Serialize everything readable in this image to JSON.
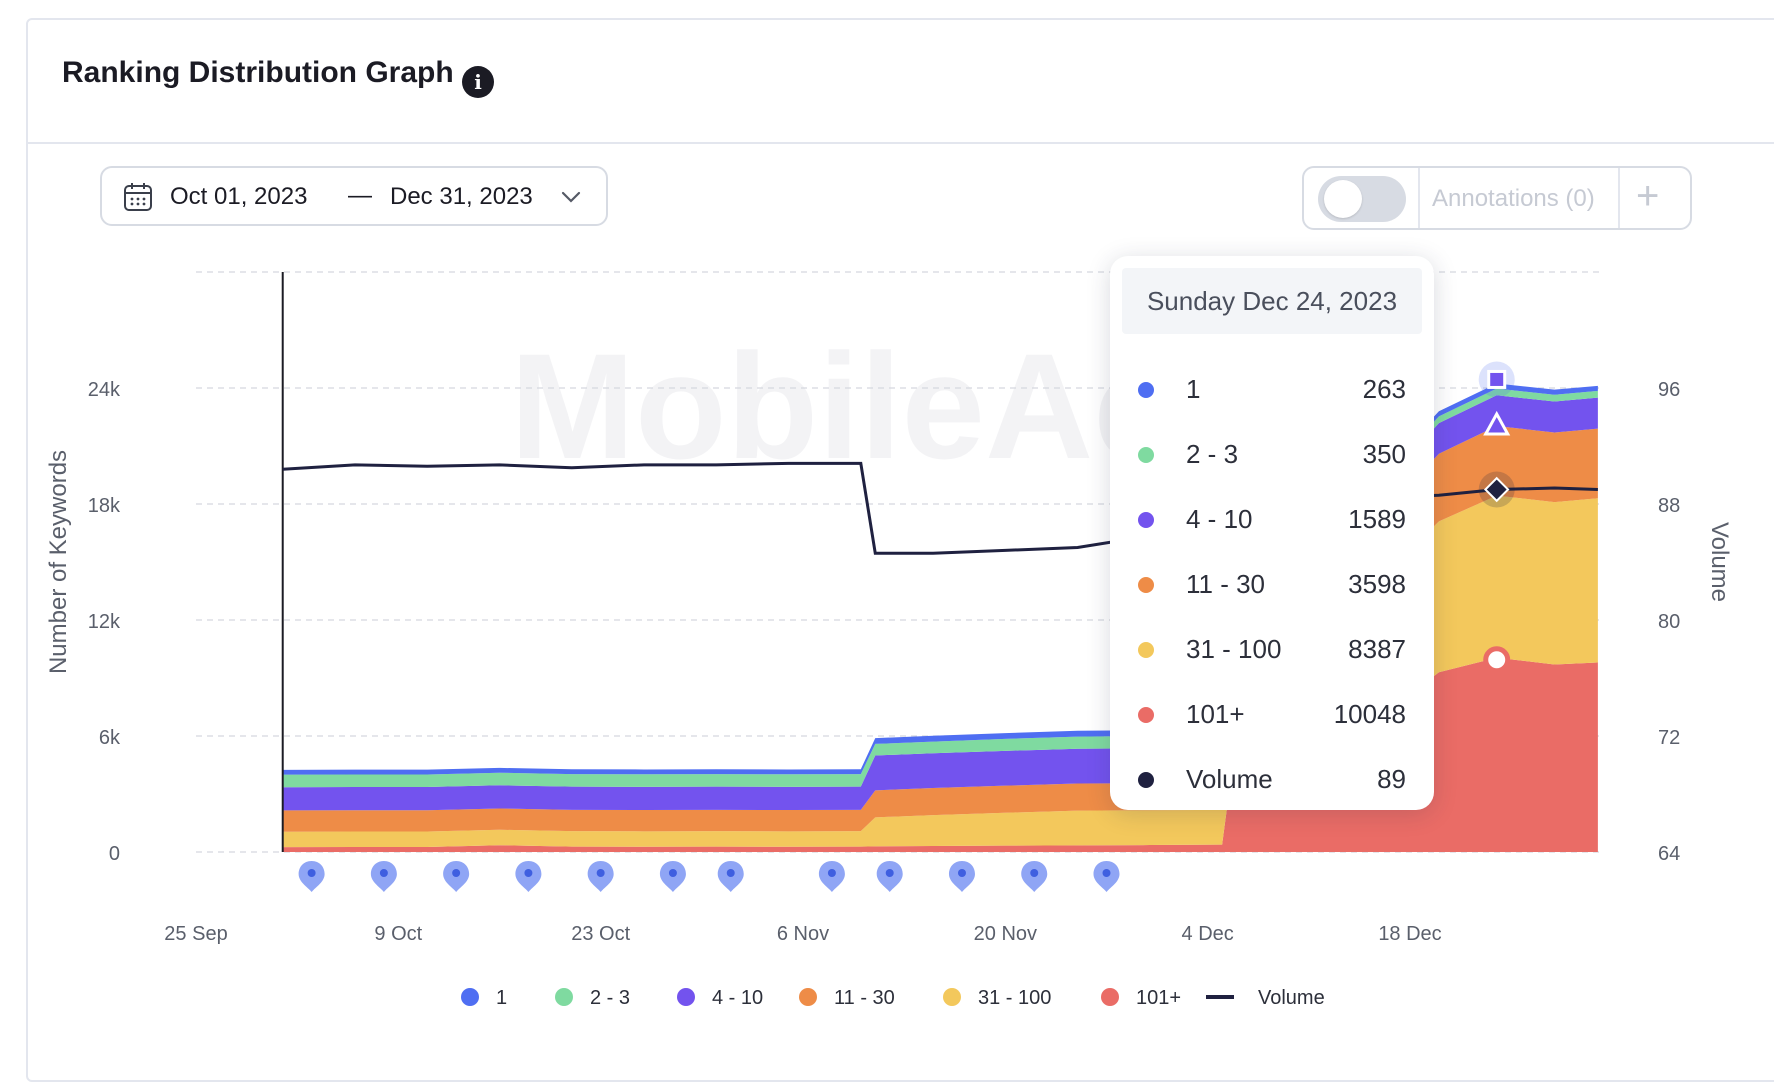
{
  "header": {
    "title": "Ranking Distribution Graph",
    "info_icon": "info-icon"
  },
  "date_range": {
    "start": "Oct 01, 2023",
    "separator": "—",
    "end": "Dec 31, 2023"
  },
  "annotations": {
    "label": "Annotations (0)",
    "enabled": false,
    "add_symbol": "+"
  },
  "watermark": "MobileAc",
  "tooltip": {
    "date": "Sunday Dec 24, 2023",
    "rows": [
      {
        "name": "1",
        "value": "263",
        "color": "#4f6ef2"
      },
      {
        "name": "2 - 3",
        "value": "350",
        "color": "#7fdaa0"
      },
      {
        "name": "4 - 10",
        "value": "1589",
        "color": "#7353ee"
      },
      {
        "name": "11 - 30",
        "value": "3598",
        "color": "#ee8c47"
      },
      {
        "name": "31 - 100",
        "value": "8387",
        "color": "#f3c85c"
      },
      {
        "name": "101+",
        "value": "10048",
        "color": "#ea6c66"
      },
      {
        "name": "Volume",
        "value": "89",
        "color": "#1f2140"
      }
    ]
  },
  "chart_data": {
    "type": "area",
    "ylabel": "Number of Keywords",
    "y2label": "Volume",
    "ylim": [
      0,
      30000
    ],
    "y2lim": [
      64,
      104
    ],
    "yticks": [
      "0",
      "6k",
      "12k",
      "18k",
      "24k"
    ],
    "y2ticks": [
      "64",
      "72",
      "80",
      "88",
      "96"
    ],
    "x_ticks": [
      "25 Sep",
      "9 Oct",
      "23 Oct",
      "6 Nov",
      "20 Nov",
      "4 Dec",
      "18 Dec"
    ],
    "x": [
      "2023-10-01",
      "2023-10-06",
      "2023-10-11",
      "2023-10-16",
      "2023-10-21",
      "2023-10-26",
      "2023-10-31",
      "2023-11-05",
      "2023-11-10",
      "2023-11-11",
      "2023-11-15",
      "2023-11-20",
      "2023-11-25",
      "2023-11-30",
      "2023-12-05",
      "2023-12-06",
      "2023-12-10",
      "2023-12-15",
      "2023-12-20",
      "2023-12-24",
      "2023-12-28",
      "2023-12-31"
    ],
    "series": [
      {
        "name": "101+",
        "color": "#ea6c66",
        "values": [
          250,
          260,
          260,
          350,
          280,
          270,
          280,
          270,
          280,
          290,
          310,
          330,
          340,
          360,
          380,
          6000,
          6100,
          6400,
          9300,
          10048,
          9700,
          9800
        ]
      },
      {
        "name": "31 - 100",
        "color": "#f3c85c",
        "values": [
          800,
          800,
          800,
          800,
          800,
          800,
          800,
          800,
          800,
          1500,
          1600,
          1700,
          1800,
          1800,
          1800,
          3500,
          5000,
          7000,
          7800,
          8387,
          8400,
          8500
        ]
      },
      {
        "name": "11 - 30",
        "color": "#ee8c47",
        "values": [
          1100,
          1100,
          1100,
          1100,
          1100,
          1100,
          1100,
          1100,
          1100,
          1400,
          1400,
          1400,
          1400,
          1400,
          1400,
          2000,
          2500,
          3200,
          3500,
          3598,
          3600,
          3600
        ]
      },
      {
        "name": "4 - 10",
        "color": "#7353ee",
        "values": [
          1200,
          1200,
          1200,
          1200,
          1200,
          1200,
          1200,
          1200,
          1200,
          1800,
          1800,
          1800,
          1800,
          1800,
          1800,
          1500,
          1500,
          1550,
          1580,
          1589,
          1600,
          1600
        ]
      },
      {
        "name": "2 - 3",
        "color": "#7fdaa0",
        "values": [
          650,
          650,
          650,
          650,
          650,
          650,
          650,
          650,
          650,
          600,
          600,
          620,
          630,
          640,
          650,
          400,
          380,
          360,
          355,
          350,
          350,
          350
        ]
      },
      {
        "name": "1",
        "color": "#4f6ef2",
        "values": [
          250,
          250,
          250,
          250,
          250,
          250,
          250,
          250,
          250,
          300,
          300,
          300,
          300,
          300,
          300,
          280,
          270,
          265,
          264,
          263,
          263,
          263
        ]
      }
    ],
    "volume": {
      "name": "Volume",
      "color": "#1f2140",
      "values": [
        90.4,
        90.7,
        90.6,
        90.7,
        90.5,
        90.7,
        90.7,
        90.8,
        90.8,
        84.6,
        84.6,
        84.8,
        85.0,
        85.8,
        86.0,
        87.6,
        87.9,
        88.4,
        88.6,
        89,
        89.1,
        89
      ]
    },
    "legend_position": "bottom",
    "grid": true
  },
  "legend": [
    {
      "name": "1",
      "color": "#4f6ef2",
      "type": "dot"
    },
    {
      "name": "2 - 3",
      "color": "#7fdaa0",
      "type": "dot"
    },
    {
      "name": "4 - 10",
      "color": "#7353ee",
      "type": "dot"
    },
    {
      "name": "11 - 30",
      "color": "#ee8c47",
      "type": "dot"
    },
    {
      "name": "31 - 100",
      "color": "#f3c85c",
      "type": "dot"
    },
    {
      "name": "101+",
      "color": "#ea6c66",
      "type": "dot"
    },
    {
      "name": "Volume",
      "color": "#1f2140",
      "type": "line"
    }
  ],
  "markers": [
    {
      "date": "2023-10-03",
      "icon": "map-pin-icon"
    },
    {
      "date": "2023-10-08",
      "icon": "map-pin-icon"
    },
    {
      "date": "2023-10-13",
      "icon": "map-pin-icon"
    },
    {
      "date": "2023-10-18",
      "icon": "map-pin-icon"
    },
    {
      "date": "2023-10-23",
      "icon": "map-pin-icon"
    },
    {
      "date": "2023-10-28",
      "icon": "map-pin-icon"
    },
    {
      "date": "2023-11-01",
      "icon": "map-pin-icon"
    },
    {
      "date": "2023-11-08",
      "icon": "map-pin-icon"
    },
    {
      "date": "2023-11-12",
      "icon": "map-pin-icon"
    },
    {
      "date": "2023-11-17",
      "icon": "map-pin-icon"
    },
    {
      "date": "2023-11-22",
      "icon": "map-pin-icon"
    },
    {
      "date": "2023-11-27",
      "icon": "map-pin-icon"
    }
  ]
}
